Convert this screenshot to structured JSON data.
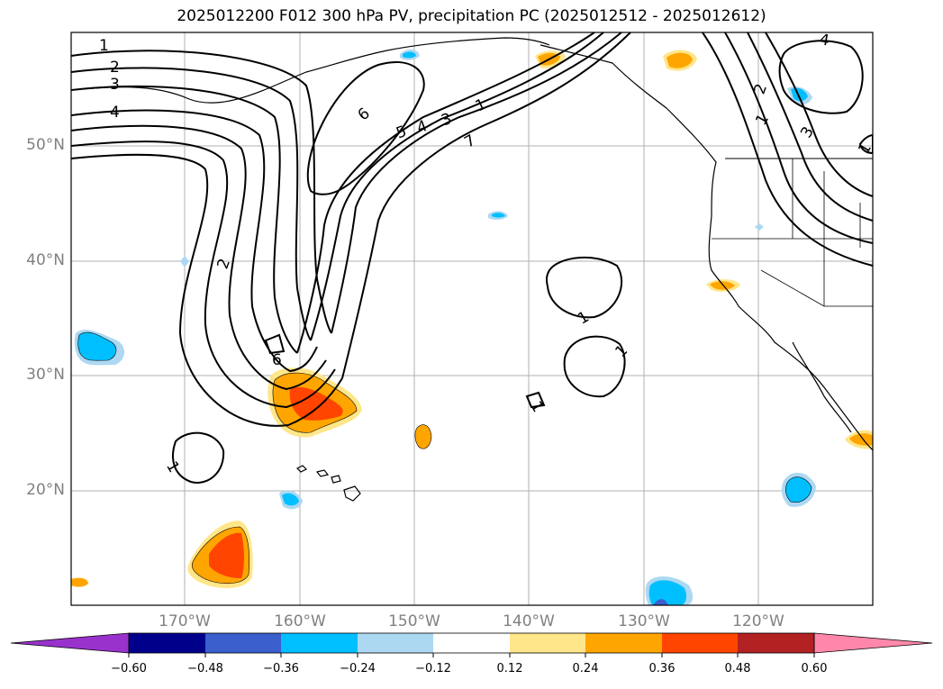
{
  "title": "2025012200 F012 300 hPa PV, precipitation PC (2025012512 - 2025012612)",
  "map": {
    "lat_labels": [
      "50°N",
      "40°N",
      "30°N",
      "20°N"
    ],
    "lon_labels": [
      "170°W",
      "160°W",
      "150°W",
      "140°W",
      "130°W",
      "120°W"
    ],
    "lat_range": [
      10,
      60
    ],
    "lon_range": [
      -180,
      -110
    ],
    "gridlines": true,
    "contour_field": "300 hPa PV",
    "contour_labels": [
      "1",
      "2",
      "3",
      "4",
      "1",
      "2",
      "6",
      "5",
      "4",
      "3",
      "1",
      "7",
      "6",
      "1",
      "1",
      "1",
      "1",
      "4",
      "2",
      "1",
      "3"
    ],
    "coastlines": true
  },
  "colorbar": {
    "ticks": [
      "−0.60",
      "−0.48",
      "−0.36",
      "−0.24",
      "−0.12",
      "0.12",
      "0.24",
      "0.36",
      "0.48",
      "0.60"
    ],
    "colors": [
      "#9932cc",
      "#00008b",
      "#3a5fcd",
      "#00bfff",
      "#add8f2",
      "#ffffff",
      "#ffe68a",
      "#ffa500",
      "#ff4500",
      "#b22222",
      "#ff88aa"
    ],
    "extend": "both"
  },
  "colors": {
    "pos_light": "#ffe68a",
    "pos_mid": "#ffa500",
    "pos_strong": "#ff4500",
    "neg_light": "#add8f2",
    "neg_mid": "#00bfff",
    "neg_strong": "#3a5fcd"
  }
}
